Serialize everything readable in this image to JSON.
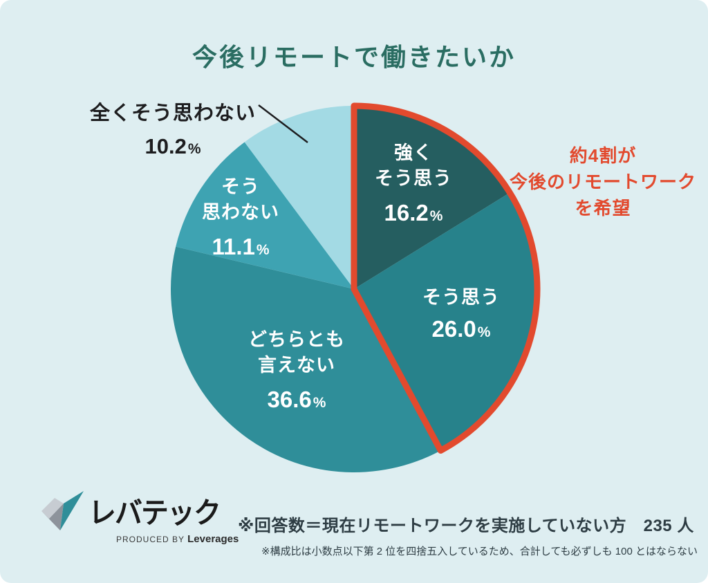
{
  "page": {
    "background_color": "#deeef1"
  },
  "title": "今後リモートで働きたいか",
  "chart_data": {
    "type": "pie",
    "title": "今後リモートで働きたいか",
    "percent_sign": "%",
    "highlight_color": "#e24a2e",
    "legend_position": "labels-on-slices",
    "slices": [
      {
        "id": "strongly-agree",
        "label": "強く\nそう思う",
        "value": 16.2,
        "pct": "16.2",
        "color": "#255e60",
        "highlighted": true,
        "label_placement": "inside"
      },
      {
        "id": "agree",
        "label": "そう思う",
        "value": 26.0,
        "pct": "26.0",
        "color": "#27828b",
        "highlighted": true,
        "label_placement": "inside"
      },
      {
        "id": "neutral",
        "label": "どちらとも\n言えない",
        "value": 36.6,
        "pct": "36.6",
        "color": "#2f8e99",
        "highlighted": false,
        "label_placement": "inside"
      },
      {
        "id": "disagree",
        "label": "そう\n思わない",
        "value": 11.1,
        "pct": "11.1",
        "color": "#3ea3b2",
        "highlighted": false,
        "label_placement": "inside"
      },
      {
        "id": "strongly-disagree",
        "label": "全くそう思わない",
        "value": 10.2,
        "pct": "10.2",
        "color": "#a3dae4",
        "highlighted": false,
        "label_placement": "outside"
      }
    ]
  },
  "annotation": {
    "text": "約4割が\n今後のリモートワーク\nを希望",
    "color": "#e24a2e"
  },
  "logo": {
    "brand": "レバテック",
    "produced_by": "PRODUCED BY",
    "company": "Leverages"
  },
  "footer": {
    "response_note": "※回答数＝現在リモートワークを実施していない方　235 人",
    "rounding_note": "※構成比は小数点以下第 2 位を四捨五入しているため、合計しても必ずしも 100 とはならない"
  }
}
